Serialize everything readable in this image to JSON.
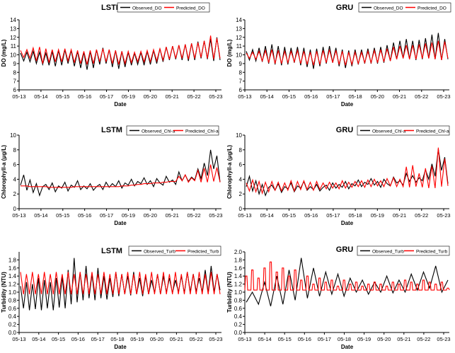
{
  "chart_data": [
    {
      "type": "line",
      "title": "LSTM",
      "xlabel": "Date",
      "ylabel": "DO (mg/L)",
      "x_ticks": [
        "05-13",
        "05-14",
        "05-15",
        "05-16",
        "05-17",
        "05-19",
        "05-20",
        "05-21",
        "05-22",
        "05-23"
      ],
      "ylim": [
        6,
        14
      ],
      "y_ticks": [
        "6",
        "7",
        "8",
        "9",
        "10",
        "11",
        "12",
        "13",
        "14"
      ],
      "legend_position": "top-right",
      "legend": [
        "Observed_DO",
        "Predicted_DO"
      ],
      "series_colors": [
        "#000000",
        "#ff0000"
      ],
      "observed": [
        10.2,
        10.3,
        10.4,
        10.3,
        10.2,
        10.4,
        10.5,
        10.6,
        10.5,
        10.4,
        10.3,
        10.4,
        10.6,
        10.8,
        10.6,
        10.5,
        10.4,
        10.3,
        10.2,
        10.3,
        10.4,
        10.5,
        10.7,
        10.9,
        11.0,
        11.1,
        11.2,
        11.3,
        11.5,
        11.6,
        11.8,
        12.0
      ],
      "observed_low": [
        9.3,
        9.2,
        9.0,
        8.9,
        8.8,
        8.7,
        8.8,
        9.0,
        8.7,
        8.5,
        8.3,
        8.5,
        8.9,
        9.0,
        8.6,
        8.4,
        8.6,
        8.8,
        8.9,
        8.8,
        8.9,
        9.0,
        9.2,
        9.4,
        9.5,
        9.4,
        9.3,
        9.4,
        9.6,
        9.5,
        9.3,
        9.4
      ],
      "predicted": [
        10.5,
        10.6,
        10.8,
        10.9,
        10.7,
        10.6,
        10.6,
        10.7,
        10.6,
        10.5,
        10.4,
        10.5,
        10.6,
        10.7,
        10.6,
        10.5,
        10.4,
        10.4,
        10.3,
        10.4,
        10.5,
        10.6,
        10.7,
        10.9,
        11.0,
        11.1,
        11.2,
        11.3,
        11.4,
        11.6,
        12.2,
        11.9
      ],
      "predicted_low": [
        9.7,
        9.6,
        9.3,
        9.0,
        9.1,
        9.2,
        9.2,
        9.3,
        9.1,
        9.0,
        8.9,
        9.0,
        9.2,
        9.2,
        9.0,
        8.9,
        9.0,
        9.1,
        9.2,
        9.2,
        9.2,
        9.3,
        9.4,
        9.5,
        9.6,
        9.6,
        9.5,
        9.6,
        9.7,
        9.6,
        9.5,
        9.6
      ]
    },
    {
      "type": "line",
      "title": "GRU",
      "xlabel": "Date",
      "ylabel": "DO (mg/L)",
      "x_ticks": [
        "05-13",
        "05-14",
        "05-15",
        "05-16",
        "05-17",
        "05-18",
        "05-20",
        "05-21",
        "05-22",
        "05-23"
      ],
      "ylim": [
        6,
        14
      ],
      "y_ticks": [
        "6",
        "7",
        "8",
        "9",
        "10",
        "11",
        "12",
        "13",
        "14"
      ],
      "legend_position": "top-right",
      "legend": [
        "Observed_DO",
        "Predicted_DO"
      ],
      "series_colors": [
        "#000000",
        "#ff0000"
      ],
      "observed": [
        10.4,
        10.6,
        10.8,
        11.0,
        11.2,
        11.0,
        10.9,
        10.8,
        10.9,
        10.8,
        10.6,
        10.7,
        10.9,
        11.0,
        10.8,
        10.6,
        10.5,
        10.6,
        10.6,
        10.7,
        10.8,
        10.9,
        11.1,
        11.4,
        11.6,
        11.8,
        11.6,
        11.7,
        11.9,
        12.3,
        12.5,
        11.8
      ],
      "observed_low": [
        9.4,
        9.3,
        9.2,
        9.0,
        8.9,
        8.8,
        8.9,
        9.1,
        8.8,
        8.6,
        8.4,
        8.7,
        9.0,
        9.1,
        8.7,
        8.5,
        8.7,
        8.9,
        9.0,
        9.0,
        9.0,
        9.1,
        9.3,
        9.5,
        9.6,
        9.5,
        9.4,
        9.5,
        9.6,
        9.5,
        9.4,
        9.5
      ],
      "predicted": [
        10.2,
        10.3,
        10.4,
        10.5,
        10.6,
        10.5,
        10.4,
        10.4,
        10.5,
        10.4,
        10.3,
        10.4,
        10.5,
        10.6,
        10.5,
        10.4,
        10.3,
        10.3,
        10.3,
        10.4,
        10.5,
        10.6,
        10.7,
        10.9,
        11.0,
        11.1,
        11.1,
        11.2,
        11.3,
        11.4,
        11.6,
        11.5
      ],
      "predicted_low": [
        9.6,
        9.5,
        9.3,
        9.1,
        9.0,
        9.0,
        9.1,
        9.2,
        9.0,
        8.9,
        8.8,
        8.9,
        9.1,
        9.1,
        8.9,
        8.8,
        8.9,
        9.0,
        9.1,
        9.1,
        9.1,
        9.2,
        9.3,
        9.5,
        9.6,
        9.5,
        9.5,
        9.6,
        9.6,
        9.5,
        9.4,
        9.6
      ]
    },
    {
      "type": "line",
      "title": "LSTM",
      "xlabel": "Date",
      "ylabel": "Chlorophyll-a (μg/L)",
      "x_ticks": [
        "05-13",
        "05-14",
        "05-15",
        "05-16",
        "05-17",
        "05-19",
        "05-20",
        "05-21",
        "05-22",
        "05-23"
      ],
      "ylim": [
        0,
        10
      ],
      "y_ticks": [
        "0",
        "2",
        "4",
        "6",
        "8",
        "10"
      ],
      "legend_position": "top-right",
      "legend": [
        "Observed_Chl-a",
        "Predicted_Chl-a"
      ],
      "series_colors": [
        "#000000",
        "#ff0000"
      ],
      "observed": [
        3.2,
        4.6,
        2.5,
        3.9,
        2.2,
        3.4,
        1.8,
        3.0,
        3.3,
        2.6,
        3.5,
        2.3,
        3.1,
        2.8,
        3.6,
        2.4,
        3.2,
        2.9,
        3.8,
        2.6,
        3.1,
        2.7,
        3.4,
        2.5,
        3.0,
        3.3,
        2.6,
        3.6,
        2.9,
        3.4,
        3.0,
        3.8,
        2.8,
        3.5,
        3.2,
        4.0,
        3.1,
        3.7,
        3.4,
        4.2,
        3.3,
        3.8,
        3.0,
        4.1,
        3.5,
        3.2,
        4.4,
        3.6,
        3.9,
        3.3,
        5.0,
        3.8,
        4.6,
        3.7,
        4.3,
        3.9,
        5.4,
        4.1,
        6.2,
        4.5,
        8.0,
        5.4,
        7.2,
        3.6
      ],
      "predicted": [
        3.1,
        3.1,
        3.1,
        3.0,
        3.0,
        3.0,
        3.0,
        3.0,
        3.0,
        2.9,
        2.9,
        2.9,
        2.9,
        2.9,
        2.9,
        2.9,
        2.9,
        3.0,
        3.0,
        3.0,
        3.0,
        3.0,
        3.0,
        3.0,
        3.0,
        3.0,
        3.0,
        3.0,
        3.0,
        3.0,
        3.0,
        3.0,
        3.1,
        3.1,
        3.1,
        3.2,
        3.2,
        3.3,
        3.3,
        3.4,
        3.4,
        3.4,
        3.5,
        3.5,
        3.5,
        3.6,
        3.6,
        3.7,
        3.7,
        3.7,
        4.4,
        3.8,
        4.6,
        3.6,
        4.2,
        3.8,
        5.2,
        3.6,
        5.5,
        3.6,
        6.0,
        3.7,
        5.6,
        3.6
      ]
    },
    {
      "type": "line",
      "title": "GRU",
      "xlabel": "Date",
      "ylabel": "Chlorophyll-a (μg/L)",
      "x_ticks": [
        "05-13",
        "05-14",
        "05-15",
        "05-16",
        "05-17",
        "05-18",
        "05-19",
        "05-21",
        "05-22",
        "05-23"
      ],
      "ylim": [
        0,
        10
      ],
      "y_ticks": [
        "0",
        "2",
        "4",
        "6",
        "8",
        "10"
      ],
      "legend_position": "top-right",
      "legend": [
        "Observed_Chl-a",
        "Predicted_Chl-a"
      ],
      "series_colors": [
        "#000000",
        "#ff0000"
      ],
      "observed": [
        3.0,
        4.4,
        2.4,
        3.8,
        2.0,
        3.3,
        1.8,
        2.9,
        3.2,
        2.5,
        3.4,
        2.2,
        3.0,
        2.7,
        3.5,
        2.3,
        3.1,
        2.8,
        3.7,
        2.5,
        3.0,
        2.6,
        3.3,
        2.4,
        2.9,
        3.2,
        2.5,
        3.5,
        2.8,
        3.3,
        2.9,
        3.7,
        2.7,
        3.4,
        3.1,
        3.9,
        3.0,
        3.6,
        3.3,
        4.1,
        3.2,
        3.7,
        2.9,
        4.0,
        3.4,
        3.1,
        4.3,
        3.5,
        3.8,
        3.2,
        4.8,
        3.7,
        4.5,
        3.6,
        4.2,
        3.8,
        5.3,
        4.0,
        6.1,
        4.4,
        8.1,
        5.2,
        7.0,
        3.4
      ],
      "predicted": [
        3.5,
        2.4,
        3.9,
        2.3,
        3.7,
        2.1,
        3.6,
        2.3,
        3.7,
        2.5,
        3.6,
        2.4,
        3.5,
        2.5,
        3.8,
        2.4,
        3.7,
        2.6,
        3.8,
        2.6,
        3.6,
        2.5,
        3.7,
        2.6,
        3.5,
        2.7,
        3.6,
        2.8,
        3.5,
        2.7,
        3.8,
        2.8,
        3.6,
        2.9,
        3.7,
        3.0,
        3.8,
        2.9,
        3.9,
        3.0,
        4.0,
        3.1,
        3.8,
        3.0,
        4.1,
        3.1,
        4.2,
        3.0,
        4.0,
        3.0,
        5.7,
        2.9,
        5.9,
        3.0,
        4.8,
        2.9,
        5.5,
        2.8,
        5.8,
        2.8,
        8.3,
        3.0,
        6.8,
        3.1
      ]
    },
    {
      "type": "line",
      "title": "LSTM",
      "xlabel": "Date",
      "ylabel": "Turbidity (NTU)",
      "x_ticks": [
        "05-13",
        "05-14",
        "05-15",
        "05-16",
        "05-17",
        "05-18",
        "05-19",
        "05-20",
        "05-21",
        "05-22",
        "05-23"
      ],
      "ylim": [
        0,
        2.0
      ],
      "y_ticks": [
        "0.0",
        "0.2",
        "0.4",
        "0.6",
        "0.8",
        "1.0",
        "1.2",
        "1.4",
        "1.6",
        "1.8"
      ],
      "legend_position": "top-right",
      "legend": [
        "Observed_Turb",
        "Predicted_Turb"
      ],
      "series_colors": [
        "#000000",
        "#ff0000"
      ],
      "observed": [
        1.15,
        1.25,
        1.2,
        1.35,
        1.3,
        1.25,
        1.35,
        1.4,
        1.55,
        1.85,
        1.5,
        1.65,
        1.45,
        1.6,
        1.4,
        1.35,
        1.5,
        1.45,
        1.4,
        1.5,
        1.35,
        1.4,
        1.3,
        1.45,
        1.4,
        1.35,
        1.3,
        1.4,
        1.5,
        1.45,
        1.35,
        1.55,
        1.65,
        1.45
      ],
      "observed_low": [
        0.6,
        0.55,
        0.58,
        0.55,
        0.6,
        0.55,
        0.62,
        0.6,
        0.7,
        0.75,
        0.8,
        0.85,
        0.8,
        0.85,
        0.82,
        0.88,
        0.9,
        0.95,
        0.92,
        0.95,
        0.9,
        0.95,
        0.98,
        0.95,
        1.0,
        0.98,
        1.0,
        0.98,
        1.0,
        1.02,
        1.0,
        0.98,
        1.0,
        1.05
      ],
      "predicted": [
        1.5,
        1.45,
        1.5,
        1.45,
        1.5,
        1.45,
        1.5,
        1.45,
        1.5,
        1.45,
        1.5,
        1.45,
        1.5,
        1.45,
        1.5,
        1.45,
        1.5,
        1.45,
        1.5,
        1.45,
        1.5,
        1.45,
        1.5,
        1.45,
        1.5,
        1.45,
        1.5,
        1.45,
        1.5,
        1.45,
        1.5,
        1.45,
        1.5,
        1.45
      ],
      "predicted_low": [
        0.95,
        0.95,
        0.95,
        0.95,
        0.95,
        0.95,
        0.95,
        0.95,
        0.95,
        0.95,
        0.95,
        0.95,
        0.95,
        0.95,
        0.95,
        0.95,
        0.95,
        0.95,
        0.95,
        0.95,
        0.95,
        0.95,
        0.95,
        0.95,
        0.95,
        0.95,
        0.95,
        0.95,
        0.95,
        0.95,
        0.95,
        0.95,
        0.95,
        0.95
      ]
    },
    {
      "type": "line",
      "title": "GRU",
      "xlabel": "Date",
      "ylabel": "Turbidity (NTU)",
      "x_ticks": [
        "05-13",
        "05-14",
        "05-15",
        "05-16",
        "05-17",
        "05-18",
        "05-19",
        "05-20",
        "05-21",
        "05-22",
        "05-23"
      ],
      "ylim": [
        0,
        2.0
      ],
      "y_ticks": [
        "0.0",
        "0.2",
        "0.4",
        "0.6",
        "0.8",
        "1.0",
        "1.2",
        "1.4",
        "1.6",
        "1.8",
        "2.0"
      ],
      "legend_position": "top-right",
      "legend": [
        "Observed_Turb",
        "Predicted_Turb"
      ],
      "series_colors": [
        "#000000",
        "#ff0000"
      ],
      "observed": [
        0.75,
        1.0,
        0.7,
        1.25,
        0.65,
        1.4,
        0.7,
        1.55,
        0.8,
        1.85,
        0.85,
        1.6,
        0.9,
        1.5,
        0.95,
        1.45,
        0.9,
        1.35,
        1.0,
        1.3,
        0.95,
        1.25,
        1.0,
        1.4,
        0.98,
        1.3,
        1.0,
        1.45,
        1.05,
        1.5,
        1.1,
        1.65,
        1.0,
        1.3
      ],
      "predicted": [
        1.05,
        1.05,
        1.05,
        1.05,
        1.05,
        1.05,
        1.05,
        1.05,
        1.05,
        1.05,
        1.05,
        1.05,
        1.05,
        1.05,
        1.05,
        1.05,
        1.05,
        1.05,
        1.05,
        1.05,
        1.05,
        1.05,
        1.05,
        1.05,
        1.05,
        1.05,
        1.05,
        1.05,
        1.05,
        1.05,
        1.05,
        1.05,
        1.05,
        1.05
      ],
      "predicted_spikes": [
        1.4,
        1.55,
        1.35,
        1.6,
        1.75,
        1.5,
        1.6,
        1.4,
        1.55,
        1.3,
        1.4,
        1.2,
        1.35,
        1.25,
        1.3,
        1.15,
        1.3,
        1.2,
        1.25,
        1.15,
        1.2,
        1.25,
        1.2,
        1.15,
        1.25,
        1.2,
        1.3,
        1.25,
        1.2,
        1.3,
        1.25,
        1.2,
        1.25,
        1.1
      ]
    }
  ]
}
